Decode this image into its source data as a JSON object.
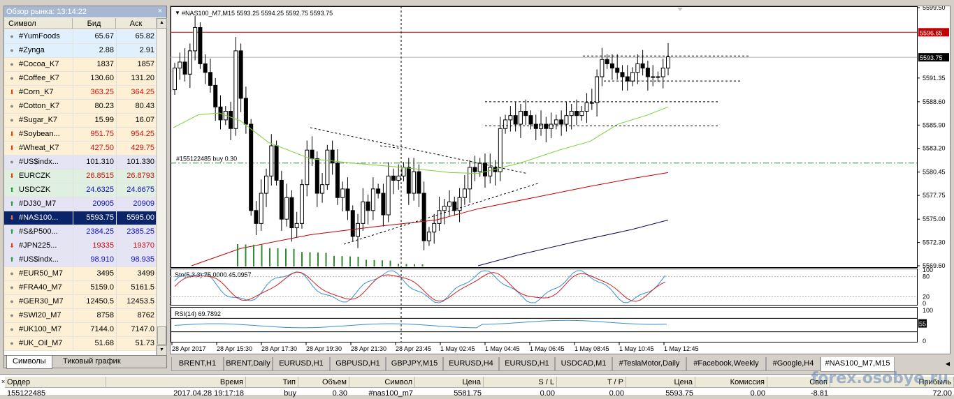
{
  "market_watch": {
    "title": "Обзор рынка: 13:14:22",
    "close_glyph": "×",
    "columns": {
      "symbol": "Символ",
      "bid": "Бид",
      "ask": "Аск"
    },
    "rows": [
      {
        "symbol": "#YumFoods",
        "bid": "65.67",
        "ask": "65.82",
        "icon": "dot",
        "bg": "#e0f0fc"
      },
      {
        "symbol": "#Zynga",
        "bid": "2.88",
        "ask": "2.91",
        "icon": "dot",
        "bg": "#e0f0fc"
      },
      {
        "symbol": "#Cocoa_K7",
        "bid": "1837",
        "ask": "1857",
        "icon": "dot",
        "bg": "#fdf0d4"
      },
      {
        "symbol": "#Coffee_K7",
        "bid": "130.60",
        "ask": "131.20",
        "icon": "dot",
        "bg": "#fdf0d4"
      },
      {
        "symbol": "#Corn_K7",
        "bid": "363.25",
        "ask": "364.25",
        "icon": "down",
        "bg": "#fdf0d4"
      },
      {
        "symbol": "#Cotton_K7",
        "bid": "80.23",
        "ask": "80.43",
        "icon": "dot",
        "bg": "#fdf0d4"
      },
      {
        "symbol": "#Sugar_K7",
        "bid": "15.99",
        "ask": "16.07",
        "icon": "dot",
        "bg": "#fdf0d4"
      },
      {
        "symbol": "#Soybean...",
        "bid": "951.75",
        "ask": "954.25",
        "icon": "down",
        "bg": "#fdf0d4"
      },
      {
        "symbol": "#Wheat_K7",
        "bid": "427.50",
        "ask": "429.75",
        "icon": "down",
        "bg": "#fdf0d4"
      },
      {
        "symbol": "#US$indx...",
        "bid": "101.310",
        "ask": "101.330",
        "icon": "dot",
        "bg": "#e4e4f4"
      },
      {
        "symbol": "EURCZK",
        "bid": "26.8515",
        "ask": "26.8793",
        "icon": "down",
        "bg": "#e0f0e0"
      },
      {
        "symbol": "USDCZK",
        "bid": "24.6325",
        "ask": "24.6675",
        "icon": "up",
        "bg": "#e0f0e0"
      },
      {
        "symbol": "#DJ30_M7",
        "bid": "20905",
        "ask": "20909",
        "icon": "up",
        "bg": "#e4e4f4"
      },
      {
        "symbol": "#NAS100...",
        "bid": "5593.75",
        "ask": "5595.00",
        "icon": "down",
        "bg": "#0a246a",
        "selected": true
      },
      {
        "symbol": "#S&P500...",
        "bid": "2384.25",
        "ask": "2385.25",
        "icon": "up",
        "bg": "#e4e4f4"
      },
      {
        "symbol": "#JPN225...",
        "bid": "19335",
        "ask": "19370",
        "icon": "down",
        "bg": "#e4e4f4"
      },
      {
        "symbol": "#US$indx...",
        "bid": "98.910",
        "ask": "98.935",
        "icon": "up",
        "bg": "#e4e4f4"
      },
      {
        "symbol": "#EUR50_M7",
        "bid": "3495",
        "ask": "3499",
        "icon": "dot",
        "bg": "#fdf0d4"
      },
      {
        "symbol": "#FRA40_M7",
        "bid": "5159.0",
        "ask": "5161.5",
        "icon": "dot",
        "bg": "#fdf0d4"
      },
      {
        "symbol": "#GER30_M7",
        "bid": "12450.5",
        "ask": "12453.5",
        "icon": "dot",
        "bg": "#fdf0d4"
      },
      {
        "symbol": "#SWI20_M7",
        "bid": "8758",
        "ask": "8762",
        "icon": "dot",
        "bg": "#fdf0d4"
      },
      {
        "symbol": "#UK100_M7",
        "bid": "7144.0",
        "ask": "7147.0",
        "icon": "dot",
        "bg": "#fdf0d4"
      },
      {
        "symbol": "#UK_Oil_M7",
        "bid": "51.68",
        "ask": "51.73",
        "icon": "dot",
        "bg": "#fdf0d4"
      }
    ],
    "tabs": [
      "Символы",
      "Тиковый график"
    ]
  },
  "chart": {
    "header": "#NAS100_M7,M15  5593.25 5594.25 5592.75 5593.75",
    "order_label": "#155122485 buy 0.30",
    "stoch_label": "Sto(5,3,3) 75.0000 45.0957",
    "rsi_label": "RSI(14) 69.7892",
    "price_ticks": [
      "5599.50",
      "5596.65",
      "5593.75",
      "5591.35",
      "5588.60",
      "5585.90",
      "5583.20",
      "5580.45",
      "5577.75",
      "5575.00",
      "5572.30",
      "5569.60"
    ],
    "stoch_ticks": [
      "100",
      "80",
      "20",
      "0"
    ],
    "rsi_ticks": [
      "100",
      "55",
      "0"
    ],
    "time_ticks": [
      "28 Apr 2017",
      "28 Apr 15:30",
      "28 Apr 17:30",
      "28 Apr 19:30",
      "28 Apr 21:30",
      "28 Apr 23:45",
      "1 May 02:45",
      "1 May 04:45",
      "1 May 06:45",
      "1 May 08:45",
      "1 May 10:45",
      "1 May 12:45"
    ],
    "colors": {
      "bid_line": "#c00000",
      "ma_fast": "#7ccf3a",
      "ma_mid": "#c00000",
      "ma_slow": "#0a0a50",
      "order_line": "#2e8b2e",
      "volume": "#2e8b2e",
      "stoch_main": "#3a8fd0",
      "stoch_signal": "#d02020",
      "rsi": "#3a8fd0"
    }
  },
  "chart_tabs": [
    "BRENT,H1",
    "BRENT,Daily",
    "EURUSD,H1",
    "GBPUSD,H1",
    "GBPJPY,M15",
    "EURUSD,H4",
    "EURUSD,H1",
    "USDCAD,M1",
    "#TeslaMotor,Daily",
    "#Facebook,Weekly",
    "#Google,H4",
    "#NAS100_M7,M15"
  ],
  "terminal": {
    "close_glyph": "×",
    "columns": [
      "Ордер",
      "Время",
      "Тип",
      "Объем",
      "Символ",
      "Цена",
      "S / L",
      "T / P",
      "Цена",
      "Комиссия",
      "Своп",
      "Прибыль"
    ],
    "row": [
      "155122485",
      "2017.04.28 19:17:18",
      "buy",
      "0.30",
      "#nas100_m7",
      "5581.75",
      "0.00",
      "0.00",
      "5593.75",
      "0.00",
      "-8.81",
      "72.00"
    ]
  },
  "watermark": "forex.osobye.ru"
}
